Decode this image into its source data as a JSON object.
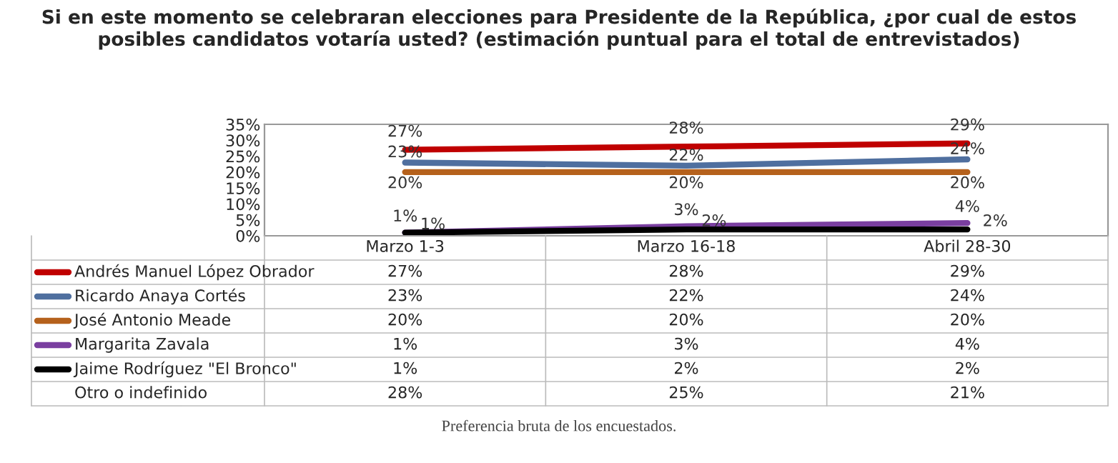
{
  "chart_data": {
    "type": "line",
    "title": "Si en este momento se celebraran elecciones para Presidente de la República, ¿por cual de estos posibles candidatos votaría usted? (estimación puntual para el total de entrevistados)",
    "categories": [
      "Marzo 1-3",
      "Marzo 16-18",
      "Abril 28-30"
    ],
    "series": [
      {
        "name": "Andrés Manuel López Obrador",
        "color": "#c00000",
        "values": [
          27,
          28,
          29
        ],
        "value_labels": [
          "27%",
          "28%",
          "29%"
        ]
      },
      {
        "name": "Ricardo Anaya Cortés",
        "color": "#4f6f9f",
        "values": [
          23,
          22,
          24
        ],
        "value_labels": [
          "23%",
          "22%",
          "24%"
        ]
      },
      {
        "name": "José Antonio Meade",
        "color": "#b5611c",
        "values": [
          20,
          20,
          20
        ],
        "value_labels": [
          "20%",
          "20%",
          "20%"
        ]
      },
      {
        "name": "Margarita Zavala",
        "color": "#7a3fa0",
        "values": [
          1,
          3,
          4
        ],
        "value_labels": [
          "1%",
          "3%",
          "4%"
        ]
      },
      {
        "name": "Jaime Rodríguez \"El Bronco\"",
        "color": "#000000",
        "values": [
          1,
          2,
          2
        ],
        "value_labels": [
          "1%",
          "2%",
          "2%"
        ]
      }
    ],
    "ylim": [
      0,
      35
    ],
    "yticks": [
      {
        "value": 0,
        "label": "0%"
      },
      {
        "value": 5,
        "label": "5%"
      },
      {
        "value": 10,
        "label": "10%"
      },
      {
        "value": 15,
        "label": "15%"
      },
      {
        "value": 20,
        "label": "20%"
      },
      {
        "value": 25,
        "label": "25%"
      },
      {
        "value": 30,
        "label": "30%"
      },
      {
        "value": 35,
        "label": "35%"
      }
    ],
    "grid": false,
    "legend": "bottom",
    "annotations": [
      "Otro o indefinido",
      "28%",
      "25%",
      "21%",
      "Preferencia bruta de los encuestados."
    ]
  }
}
